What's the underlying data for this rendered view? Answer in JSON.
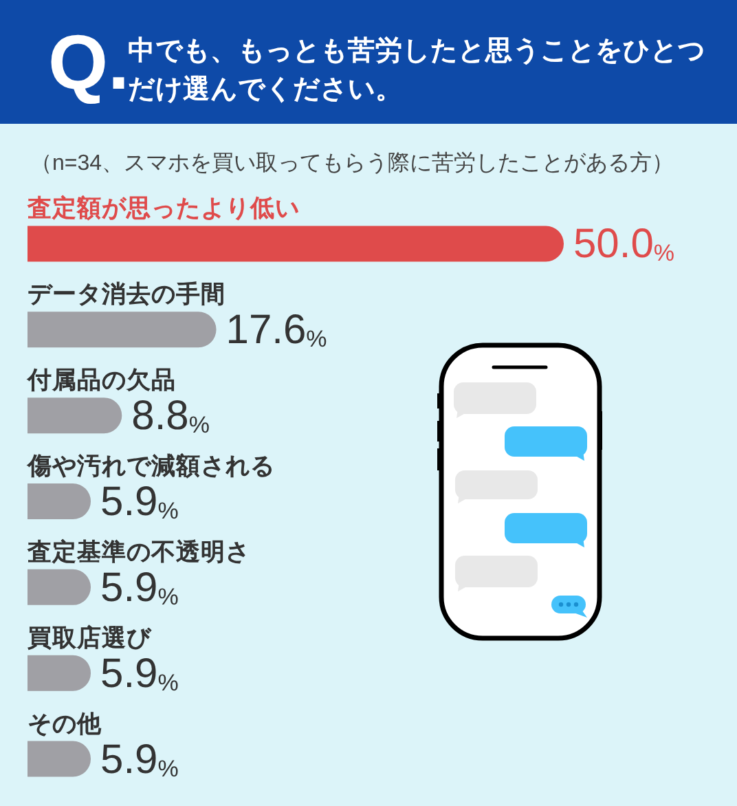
{
  "chart_data": {
    "type": "bar",
    "orientation": "horizontal",
    "title": "中でも、もっとも苦労したと思うことをひとつだけ選んでください。",
    "subtitle": "（n=34、スマホを買い取ってもらう際に苦労したことがある方）",
    "annotations": [
      "Q."
    ],
    "categories": [
      "査定額が思ったより低い",
      "データ消去の手間",
      "付属品の欠品",
      "傷や汚れで減額される",
      "査定基準の不透明さ",
      "買取店選び",
      "その他"
    ],
    "values": [
      50.0,
      17.6,
      8.8,
      5.9,
      5.9,
      5.9,
      5.9
    ],
    "colors": [
      "#df4b4b",
      "#a0a0a5",
      "#a0a0a5",
      "#a0a0a5",
      "#a0a0a5",
      "#a0a0a5",
      "#a0a0a5"
    ],
    "value_labels": [
      "50.0%",
      "17.6%",
      "8.8%",
      "5.9%",
      "5.9%",
      "5.9%",
      "5.9%"
    ],
    "tick_labels": "y"
  }
}
